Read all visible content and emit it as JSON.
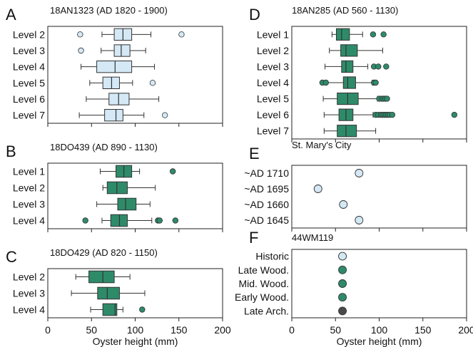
{
  "colors": {
    "light": "#d4e8f5",
    "green": "#2e8b6a",
    "dark": "#4a4a4a",
    "outline": "#333333"
  },
  "chart_data": [
    {
      "panel": "A",
      "type": "box",
      "title": "18AN1323 (AD 1820 - 1900)",
      "xlim": [
        0,
        200
      ],
      "color": "light",
      "categories": [
        "Level 2",
        "Level 3",
        "Level 4",
        "Level 5",
        "Level 6",
        "Level 7"
      ],
      "boxes": [
        {
          "wl": 62,
          "q1": 76,
          "med": 86,
          "q3": 96,
          "wh": 118,
          "out": [
            37,
            153
          ]
        },
        {
          "wl": 61,
          "q1": 76,
          "med": 84,
          "q3": 94,
          "wh": 112,
          "out": [
            38
          ]
        },
        {
          "wl": 38,
          "q1": 56,
          "med": 77,
          "q3": 96,
          "wh": 122,
          "out": []
        },
        {
          "wl": 48,
          "q1": 63,
          "med": 73,
          "q3": 82,
          "wh": 97,
          "out": [
            120
          ]
        },
        {
          "wl": 44,
          "q1": 70,
          "med": 81,
          "q3": 93,
          "wh": 127,
          "out": []
        },
        {
          "wl": 36,
          "q1": 65,
          "med": 78,
          "q3": 86,
          "wh": 110,
          "out": [
            134
          ]
        }
      ]
    },
    {
      "panel": "B",
      "type": "box",
      "title": "18DO439 (AD 890 - 1130)",
      "xlim": [
        0,
        200
      ],
      "color": "green",
      "categories": [
        "Level 1",
        "Level 2",
        "Level 3",
        "Level 4"
      ],
      "boxes": [
        {
          "wl": 60,
          "q1": 78,
          "med": 87,
          "q3": 96,
          "wh": 105,
          "out": [
            143
          ]
        },
        {
          "wl": 63,
          "q1": 68,
          "med": 79,
          "q3": 91,
          "wh": 123,
          "out": []
        },
        {
          "wl": 56,
          "q1": 80,
          "med": 89,
          "q3": 101,
          "wh": 117,
          "out": []
        },
        {
          "wl": 62,
          "q1": 72,
          "med": 82,
          "q3": 91,
          "wh": 119,
          "out": [
            43,
            126,
            128,
            146
          ]
        }
      ]
    },
    {
      "panel": "C",
      "type": "box",
      "title": "18DO429 (AD 820 - 1150)",
      "xlim": [
        0,
        200
      ],
      "color": "green",
      "categories": [
        "Level 2",
        "Level 3",
        "Level 4"
      ],
      "boxes": [
        {
          "wl": 32,
          "q1": 47,
          "med": 63,
          "q3": 76,
          "wh": 94,
          "out": []
        },
        {
          "wl": 27,
          "q1": 57,
          "med": 68,
          "q3": 82,
          "wh": 111,
          "out": []
        },
        {
          "wl": 49,
          "q1": 63,
          "med": 77,
          "q3": 79,
          "wh": 86,
          "out": [
            108
          ]
        }
      ]
    },
    {
      "panel": "D",
      "type": "box",
      "title": "18AN285 (AD 560 - 1130)",
      "xlim": [
        0,
        200
      ],
      "color": "green",
      "categories": [
        "Level 1",
        "Level 2",
        "Level 3",
        "Level 4",
        "Level 5",
        "Level 6",
        "Level 7"
      ],
      "boxes": [
        {
          "wl": 46,
          "q1": 51,
          "med": 57,
          "q3": 66,
          "wh": 81,
          "out": [
            93,
            105
          ]
        },
        {
          "wl": 43,
          "q1": 56,
          "med": 62,
          "q3": 75,
          "wh": 104,
          "out": []
        },
        {
          "wl": 38,
          "q1": 57,
          "med": 62,
          "q3": 70,
          "wh": 87,
          "out": [
            94,
            99,
            108
          ]
        },
        {
          "wl": 40,
          "q1": 59,
          "med": 64,
          "q3": 73,
          "wh": 92,
          "out": [
            35,
            39,
            94,
            96
          ]
        },
        {
          "wl": 36,
          "q1": 52,
          "med": 64,
          "q3": 76,
          "wh": 98,
          "out": [
            100,
            103,
            105,
            107,
            109
          ]
        },
        {
          "wl": 37,
          "q1": 54,
          "med": 62,
          "q3": 70,
          "wh": 93,
          "out": [
            96,
            99,
            102,
            104,
            106,
            108,
            110,
            112,
            115,
            186
          ]
        },
        {
          "wl": 37,
          "q1": 52,
          "med": 62,
          "q3": 74,
          "wh": 96,
          "out": []
        }
      ]
    },
    {
      "panel": "E",
      "type": "scatter",
      "title": "St. Mary's City",
      "xlim": [
        0,
        200
      ],
      "color": "light",
      "categories": [
        "~AD 1710",
        "~AD 1695",
        "~AD 1660",
        "~AD 1645"
      ],
      "values": [
        77,
        30,
        59,
        77
      ]
    },
    {
      "panel": "F",
      "type": "scatter",
      "title": "44WM119",
      "xlim": [
        0,
        200
      ],
      "xlabel": "Oyster height (mm)",
      "xticks": [
        0,
        50,
        100,
        150,
        200
      ],
      "categories": [
        "Historic",
        "Late Wood.",
        "Mid. Wood.",
        "Early Wood.",
        "Late Arch."
      ],
      "values": [
        58,
        58,
        58,
        58,
        58
      ],
      "point_colors": [
        "light",
        "green",
        "green",
        "green",
        "dark"
      ]
    }
  ],
  "shared_xaxis": {
    "xlabel": "Oyster height (mm)",
    "xticks": [
      0,
      50,
      100,
      150,
      200
    ]
  }
}
